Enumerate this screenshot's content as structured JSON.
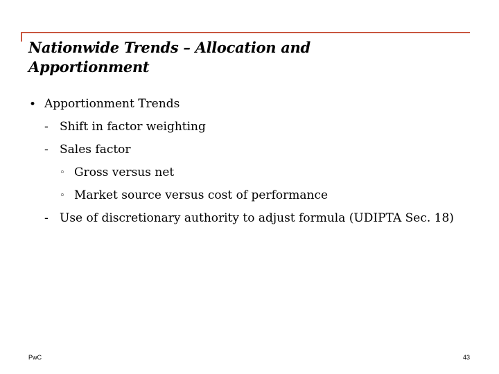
{
  "title": {
    "line1": "Nationwide Trends – Allocation and",
    "line2": "Apportionment"
  },
  "bullets": [
    {
      "marker": "•",
      "text": "Apportionment Trends"
    },
    {
      "marker": "-",
      "text": "Shift in factor weighting"
    },
    {
      "marker": "-",
      "text": "Sales factor"
    },
    {
      "marker": "◦",
      "text": "Gross versus net"
    },
    {
      "marker": "◦",
      "text": "Market source versus cost of performance"
    },
    {
      "marker": "-",
      "text": "Use of discretionary authority to adjust formula (UDIPTA Sec. 18)"
    }
  ],
  "footer": {
    "brand": "PwC",
    "page": "43"
  },
  "colors": {
    "accent": "#c9573f"
  }
}
